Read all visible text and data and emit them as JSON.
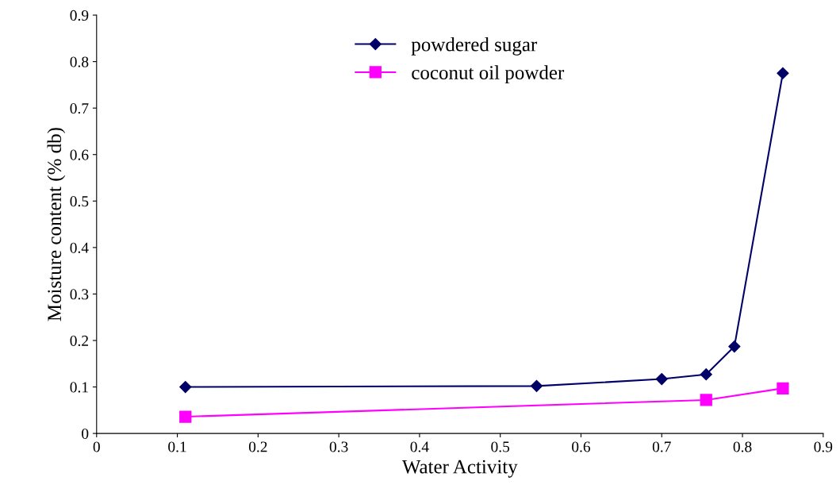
{
  "chart_data": {
    "type": "line",
    "xlabel": "Water Activity",
    "ylabel": "Moisture content (% db)",
    "xlim": [
      0,
      0.9
    ],
    "xticks": [
      0,
      0.1,
      0.2,
      0.3,
      0.4,
      0.5,
      0.6,
      0.7,
      0.8,
      0.9
    ],
    "ylim": [
      0,
      0.9
    ],
    "yticks": [
      0,
      0.1,
      0.2,
      0.3,
      0.4,
      0.5,
      0.6,
      0.7,
      0.8,
      0.9
    ],
    "grid": false,
    "legend": "top",
    "line_style": "solid",
    "series": [
      {
        "name": "powdered sugar",
        "color": "#000066",
        "marker": "diamond",
        "x": [
          0.11,
          0.545,
          0.7,
          0.755,
          0.79,
          0.85
        ],
        "values": [
          0.1,
          0.102,
          0.117,
          0.127,
          0.187,
          0.775
        ]
      },
      {
        "name": "coconut oil powder",
        "color": "#ff00ff",
        "marker": "square",
        "x": [
          0.11,
          0.755,
          0.85
        ],
        "values": [
          0.036,
          0.072,
          0.097
        ]
      }
    ]
  }
}
